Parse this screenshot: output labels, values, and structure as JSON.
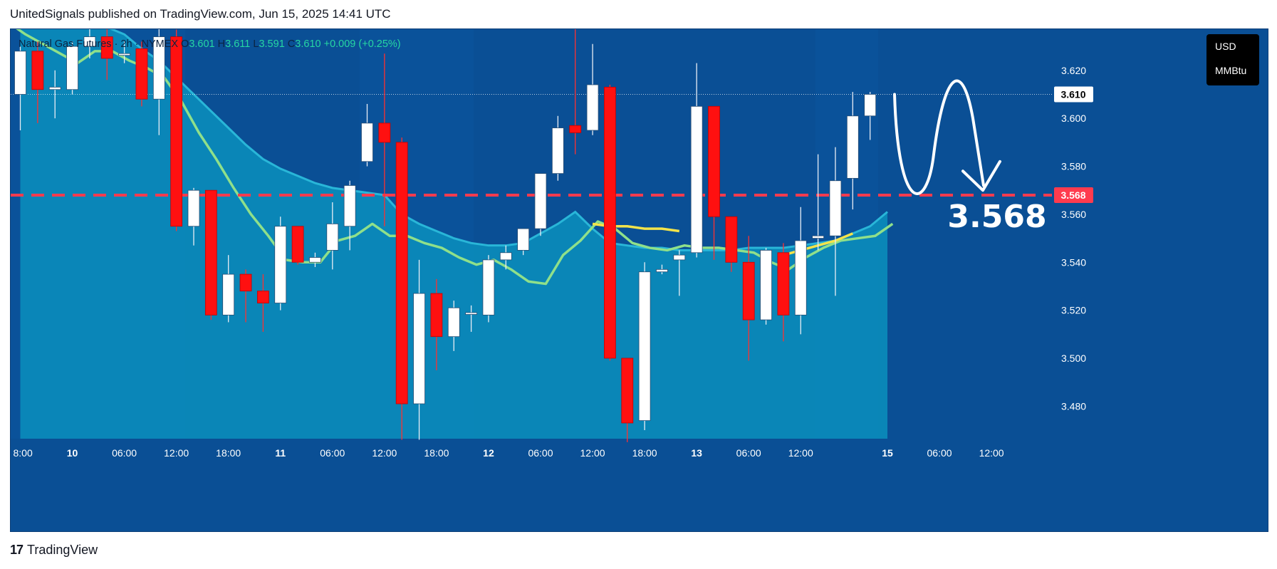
{
  "header": {
    "publisher_line": "UnitedSignals published on TradingView.com, Jun 15, 2025 14:41 UTC"
  },
  "legend": {
    "symbol": "Natural Gas Futures · 2h · NYMEX",
    "open_label": "O",
    "open": "3.601",
    "high_label": "H",
    "high": "3.611",
    "low_label": "L",
    "low": "3.591",
    "close_label": "C",
    "close": "3.610",
    "change": "+0.009 (+0.25%)"
  },
  "currency": {
    "line1": "USD",
    "line2": "MMBtu"
  },
  "footer": {
    "logo_mark": "17",
    "logo_text": "TradingView"
  },
  "colors": {
    "background": "#0a4f95",
    "cloud_fill": "#0a8fbd",
    "cloud_edge": "#29b6d8",
    "green_line": "#8fe08a",
    "yellow_line": "#f3e34a",
    "bull_candle": "#ffffff",
    "bear_candle": "#ff1010",
    "level_line": "#ff3b4e",
    "price_badge": "#ffffff"
  },
  "chart_data": {
    "type": "candlestick",
    "symbol": "Natural Gas Futures",
    "interval": "2h",
    "exchange": "NYMEX",
    "ylim": [
      3.462,
      3.652
    ],
    "y_ticks": [
      3.48,
      3.5,
      3.52,
      3.54,
      3.56,
      3.58,
      3.6,
      3.62
    ],
    "y_tick_labels": [
      "3.480",
      "3.500",
      "3.520",
      "3.540",
      "3.560",
      "3.580",
      "3.600",
      "3.620"
    ],
    "x_ticks": [
      {
        "label": "8:00",
        "bar": 0
      },
      {
        "label": "10",
        "bar": 3
      },
      {
        "label": "06:00",
        "bar": 6
      },
      {
        "label": "12:00",
        "bar": 9
      },
      {
        "label": "18:00",
        "bar": 12
      },
      {
        "label": "11",
        "bar": 15
      },
      {
        "label": "06:00",
        "bar": 18
      },
      {
        "label": "12:00",
        "bar": 21
      },
      {
        "label": "18:00",
        "bar": 24
      },
      {
        "label": "12",
        "bar": 27
      },
      {
        "label": "06:00",
        "bar": 30
      },
      {
        "label": "12:00",
        "bar": 33
      },
      {
        "label": "18:00",
        "bar": 36
      },
      {
        "label": "13",
        "bar": 39
      },
      {
        "label": "06:00",
        "bar": 42
      },
      {
        "label": "12:00",
        "bar": 45
      },
      {
        "label": "15",
        "bar": 50
      },
      {
        "label": "06:00",
        "bar": 53
      },
      {
        "label": "12:00",
        "bar": 56
      }
    ],
    "candles": [
      {
        "o": 3.61,
        "h": 3.63,
        "l": 3.595,
        "c": 3.628
      },
      {
        "o": 3.628,
        "h": 3.632,
        "l": 3.598,
        "c": 3.612
      },
      {
        "o": 3.612,
        "h": 3.62,
        "l": 3.6,
        "c": 3.613
      },
      {
        "o": 3.612,
        "h": 3.632,
        "l": 3.61,
        "c": 3.63
      },
      {
        "o": 3.63,
        "h": 3.638,
        "l": 3.625,
        "c": 3.634
      },
      {
        "o": 3.634,
        "h": 3.64,
        "l": 3.616,
        "c": 3.625
      },
      {
        "o": 3.627,
        "h": 3.632,
        "l": 3.623,
        "c": 3.627
      },
      {
        "o": 3.629,
        "h": 3.632,
        "l": 3.605,
        "c": 3.608
      },
      {
        "o": 3.608,
        "h": 3.64,
        "l": 3.593,
        "c": 3.634
      },
      {
        "o": 3.634,
        "h": 3.637,
        "l": 3.553,
        "c": 3.555
      },
      {
        "o": 3.555,
        "h": 3.571,
        "l": 3.547,
        "c": 3.57
      },
      {
        "o": 3.57,
        "h": 3.57,
        "l": 3.516,
        "c": 3.518
      },
      {
        "o": 3.518,
        "h": 3.543,
        "l": 3.515,
        "c": 3.535
      },
      {
        "o": 3.535,
        "h": 3.537,
        "l": 3.515,
        "c": 3.528
      },
      {
        "o": 3.528,
        "h": 3.535,
        "l": 3.511,
        "c": 3.523
      },
      {
        "o": 3.523,
        "h": 3.559,
        "l": 3.52,
        "c": 3.555
      },
      {
        "o": 3.555,
        "h": 3.555,
        "l": 3.539,
        "c": 3.54
      },
      {
        "o": 3.54,
        "h": 3.544,
        "l": 3.538,
        "c": 3.542
      },
      {
        "o": 3.545,
        "h": 3.565,
        "l": 3.537,
        "c": 3.556
      },
      {
        "o": 3.555,
        "h": 3.574,
        "l": 3.545,
        "c": 3.572
      },
      {
        "o": 3.582,
        "h": 3.606,
        "l": 3.58,
        "c": 3.598
      },
      {
        "o": 3.598,
        "h": 3.627,
        "l": 3.555,
        "c": 3.59
      },
      {
        "o": 3.59,
        "h": 3.592,
        "l": 3.466,
        "c": 3.481
      },
      {
        "o": 3.481,
        "h": 3.541,
        "l": 3.466,
        "c": 3.527
      },
      {
        "o": 3.527,
        "h": 3.533,
        "l": 3.495,
        "c": 3.509
      },
      {
        "o": 3.509,
        "h": 3.524,
        "l": 3.503,
        "c": 3.521
      },
      {
        "o": 3.519,
        "h": 3.522,
        "l": 3.511,
        "c": 3.519
      },
      {
        "o": 3.518,
        "h": 3.543,
        "l": 3.515,
        "c": 3.541
      },
      {
        "o": 3.541,
        "h": 3.547,
        "l": 3.537,
        "c": 3.544
      },
      {
        "o": 3.545,
        "h": 3.554,
        "l": 3.543,
        "c": 3.554
      },
      {
        "o": 3.554,
        "h": 3.577,
        "l": 3.551,
        "c": 3.577
      },
      {
        "o": 3.577,
        "h": 3.601,
        "l": 3.574,
        "c": 3.596
      },
      {
        "o": 3.597,
        "h": 3.644,
        "l": 3.585,
        "c": 3.594
      },
      {
        "o": 3.595,
        "h": 3.631,
        "l": 3.593,
        "c": 3.614
      },
      {
        "o": 3.613,
        "h": 3.614,
        "l": 3.499,
        "c": 3.5
      },
      {
        "o": 3.5,
        "h": 3.5,
        "l": 3.465,
        "c": 3.473
      },
      {
        "o": 3.474,
        "h": 3.54,
        "l": 3.47,
        "c": 3.536
      },
      {
        "o": 3.536,
        "h": 3.539,
        "l": 3.535,
        "c": 3.537
      },
      {
        "o": 3.541,
        "h": 3.545,
        "l": 3.526,
        "c": 3.543
      },
      {
        "o": 3.544,
        "h": 3.623,
        "l": 3.542,
        "c": 3.605
      },
      {
        "o": 3.605,
        "h": 3.605,
        "l": 3.541,
        "c": 3.559
      },
      {
        "o": 3.559,
        "h": 3.559,
        "l": 3.536,
        "c": 3.54
      },
      {
        "o": 3.54,
        "h": 3.551,
        "l": 3.499,
        "c": 3.516
      },
      {
        "o": 3.516,
        "h": 3.546,
        "l": 3.514,
        "c": 3.545
      },
      {
        "o": 3.544,
        "h": 3.548,
        "l": 3.507,
        "c": 3.518
      },
      {
        "o": 3.518,
        "h": 3.563,
        "l": 3.51,
        "c": 3.549
      },
      {
        "o": 3.55,
        "h": 3.585,
        "l": 3.545,
        "c": 3.551
      },
      {
        "o": 3.551,
        "h": 3.588,
        "l": 3.526,
        "c": 3.574
      },
      {
        "o": 3.575,
        "h": 3.611,
        "l": 3.562,
        "c": 3.601
      },
      {
        "o": 3.601,
        "h": 3.611,
        "l": 3.591,
        "c": 3.61
      }
    ],
    "cloud_upper": [
      3.66,
      3.655,
      3.65,
      3.646,
      3.642,
      3.638,
      3.635,
      3.629,
      3.624,
      3.617,
      3.61,
      3.603,
      3.596,
      3.589,
      3.583,
      3.579,
      3.576,
      3.573,
      3.571,
      3.57,
      3.569,
      3.568,
      3.56,
      3.556,
      3.553,
      3.55,
      3.548,
      3.547,
      3.547,
      3.548,
      3.552,
      3.556,
      3.561,
      3.554,
      3.548,
      3.547,
      3.546,
      3.546,
      3.545,
      3.545,
      3.545,
      3.545,
      3.546,
      3.546,
      3.546,
      3.547,
      3.548,
      3.549,
      3.552,
      3.555,
      3.561
    ],
    "green_line": [
      3.64,
      3.635,
      3.631,
      3.627,
      3.623,
      3.628,
      3.628,
      3.624,
      3.621,
      3.617,
      3.607,
      3.594,
      3.583,
      3.571,
      3.56,
      3.551,
      3.541,
      3.54,
      3.54,
      3.549,
      3.551,
      3.556,
      3.551,
      3.551,
      3.548,
      3.546,
      3.542,
      3.539,
      3.541,
      3.537,
      3.532,
      3.531,
      3.543,
      3.549,
      3.557,
      3.554,
      3.548,
      3.546,
      3.545,
      3.547,
      3.546,
      3.546,
      3.545,
      3.544,
      3.54,
      3.537,
      3.542,
      3.546,
      3.549,
      3.55,
      3.551,
      3.556
    ],
    "yellow_segments": [
      {
        "from": 33,
        "to": 38,
        "values": [
          3.556,
          3.555,
          3.555,
          3.554,
          3.554,
          3.553
        ]
      },
      {
        "from": 44,
        "to": 48,
        "values": [
          3.543,
          3.545,
          3.547,
          3.549,
          3.552
        ]
      }
    ],
    "level": {
      "value": 3.568,
      "label": "3.568"
    },
    "last_price": {
      "value": 3.61,
      "label": "3.610"
    },
    "annotation_text": "3.568",
    "projection": "curve up then down with arrow to 3.568"
  }
}
